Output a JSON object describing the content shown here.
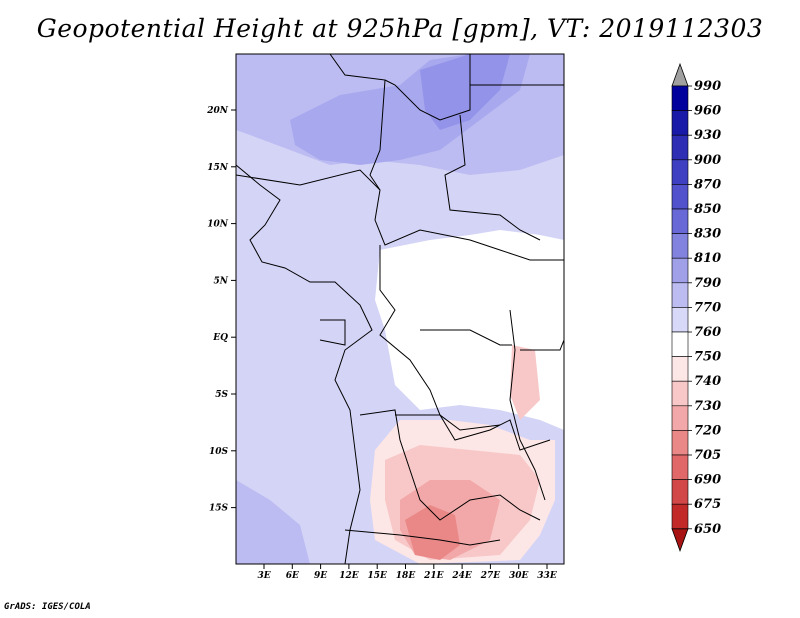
{
  "title": "Geopotential Height at 925hPa [gpm], VT: 2019112303",
  "footer": "GrADS: IGES/COLA",
  "map": {
    "lon_ticks": [
      "3E",
      "6E",
      "9E",
      "12E",
      "15E",
      "18E",
      "21E",
      "24E",
      "27E",
      "30E",
      "33E"
    ],
    "lat_ticks": [
      "20N",
      "15N",
      "10N",
      "5N",
      "EQ",
      "5S",
      "10S",
      "15S"
    ]
  },
  "colorbar": {
    "levels": [
      "990",
      "960",
      "930",
      "900",
      "870",
      "850",
      "830",
      "810",
      "790",
      "770",
      "760",
      "750",
      "740",
      "730",
      "720",
      "705",
      "690",
      "675",
      "650"
    ],
    "colors": [
      "#00009c",
      "#1a1aa8",
      "#2e2eb5",
      "#3f3fc2",
      "#5252cc",
      "#6868d6",
      "#8282df",
      "#a0a0e8",
      "#bcbcf0",
      "#d8d8f8",
      "#ffffff",
      "#fde6e6",
      "#f8c8c8",
      "#f2a8a8",
      "#ea8888",
      "#e06868",
      "#d24848",
      "#c22a2a",
      "#a81414"
    ],
    "top_arrow_color": "#a0a0a0",
    "bottom_arrow_color": "#a81414"
  }
}
